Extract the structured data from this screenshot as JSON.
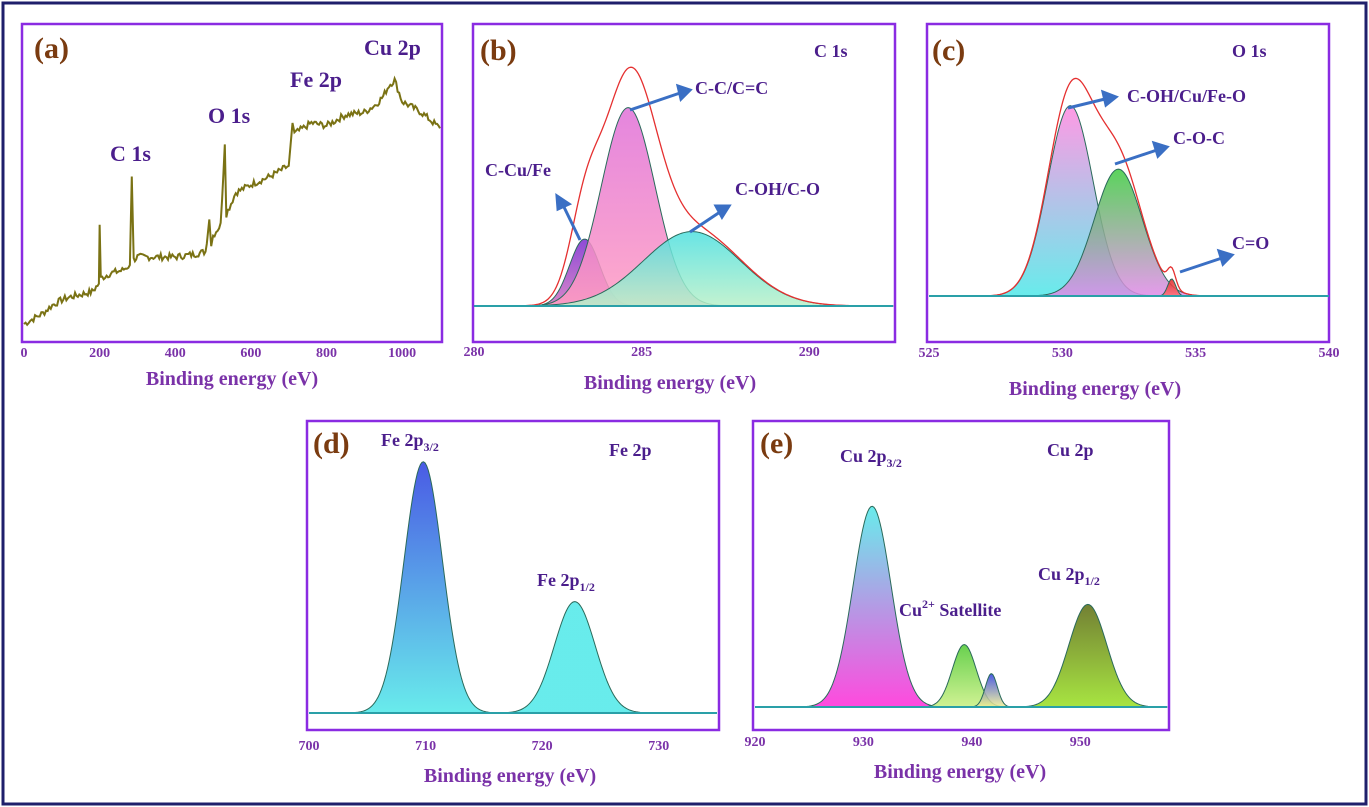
{
  "colors": {
    "frame": "#1f1f6b",
    "panel_border": "#8a2be2",
    "axis_text": "#7a32a8",
    "panel_letter": "#7a3b10",
    "label": "#4b1e8c",
    "arrow": "#3a6fc4",
    "envelope": "#e53030",
    "baseline": "#2aa0a8",
    "survey": "#7a7214"
  },
  "chart_data": [
    {
      "type": "line",
      "panel": "(a)",
      "xlabel": "Binding energy (eV)",
      "xlim": [
        0,
        1100
      ],
      "xticks": [
        0,
        200,
        400,
        600,
        800,
        1000
      ],
      "series_color": "#7a7214",
      "peak_labels": [
        {
          "text": "C 1s",
          "x": 285
        },
        {
          "text": "O 1s",
          "x": 531
        },
        {
          "text": "Fe 2p",
          "x": 710
        },
        {
          "text": "Cu 2p",
          "x": 932
        }
      ],
      "x": [
        0,
        25,
        50,
        75,
        100,
        120,
        150,
        180,
        198,
        200,
        203,
        230,
        260,
        280,
        285,
        290,
        300,
        350,
        400,
        450,
        480,
        490,
        495,
        500,
        520,
        531,
        535,
        560,
        600,
        650,
        700,
        705,
        710,
        715,
        760,
        800,
        850,
        900,
        932,
        950,
        965,
        980,
        1000,
        1050,
        1100
      ],
      "values": [
        0.03,
        0.05,
        0.07,
        0.1,
        0.12,
        0.13,
        0.14,
        0.15,
        0.18,
        0.4,
        0.2,
        0.22,
        0.23,
        0.25,
        0.58,
        0.27,
        0.28,
        0.28,
        0.28,
        0.29,
        0.3,
        0.42,
        0.32,
        0.36,
        0.4,
        0.7,
        0.44,
        0.52,
        0.55,
        0.58,
        0.62,
        0.7,
        0.78,
        0.74,
        0.78,
        0.77,
        0.81,
        0.82,
        0.85,
        0.88,
        0.92,
        0.94,
        0.86,
        0.82,
        0.76
      ]
    },
    {
      "type": "area",
      "panel": "(b)",
      "title": "C 1s",
      "xlabel": "Binding energy (eV)",
      "xlim": [
        280,
        292.5
      ],
      "xticks": [
        280,
        285,
        290
      ],
      "series": [
        {
          "name": "C-Cu/Fe",
          "center": 283.3,
          "height": 0.27,
          "width": 0.45,
          "colors": [
            "#7a2bd0",
            "#d070c0"
          ]
        },
        {
          "name": "C-C/C=C",
          "center": 284.6,
          "height": 0.8,
          "width": 0.8,
          "colors": [
            "#e070d8",
            "#ff9cc2"
          ]
        },
        {
          "name": "C-OH/C-O",
          "center": 286.5,
          "height": 0.3,
          "width": 1.45,
          "colors": [
            "#4ee0e0",
            "#b8f0c8"
          ]
        }
      ],
      "envelope_color": "#e53030"
    },
    {
      "type": "area",
      "panel": "(c)",
      "title": "O 1s",
      "xlabel": "Binding energy (eV)",
      "xlim": [
        525,
        540
      ],
      "xticks": [
        525,
        530,
        535,
        540
      ],
      "series": [
        {
          "name": "C-OH/Cu/Fe-O",
          "center": 530.3,
          "height": 0.78,
          "width": 0.85,
          "colors": [
            "#ff88e0",
            "#4ee8e8"
          ]
        },
        {
          "name": "C-O-C",
          "center": 532.1,
          "height": 0.52,
          "width": 0.9,
          "colors": [
            "#3ecc40",
            "#e08ae8"
          ]
        },
        {
          "name": "C=O",
          "center": 534.1,
          "height": 0.07,
          "width": 0.15,
          "colors": [
            "#e02020",
            "#ff7070"
          ]
        }
      ],
      "envelope_color": "#e53030"
    },
    {
      "type": "area",
      "panel": "(d)",
      "title": "Fe 2p",
      "xlabel": "Binding energy (eV)",
      "xlim": [
        700,
        735
      ],
      "xticks": [
        700,
        710,
        720,
        730
      ],
      "series": [
        {
          "name": "Fe 2p3/2",
          "center": 709.8,
          "height": 0.97,
          "width": 1.65,
          "colors": [
            "#2a3ee0",
            "#4ee8e8"
          ]
        },
        {
          "name": "Fe 2p1/2",
          "center": 722.8,
          "height": 0.43,
          "width": 1.75,
          "colors": [
            "#4ee8e8",
            "#4ee8e8"
          ]
        }
      ]
    },
    {
      "type": "area",
      "panel": "(e)",
      "title": "Cu 2p",
      "xlabel": "Binding energy (eV)",
      "xlim": [
        920,
        958
      ],
      "xticks": [
        920,
        930,
        940,
        950
      ],
      "series": [
        {
          "name": "Cu 2p3/2",
          "center": 930.8,
          "height": 0.9,
          "width": 1.75,
          "colors": [
            "#4ee8e8",
            "#ff2ad8"
          ]
        },
        {
          "name": "Cu2+ Satellite",
          "center": 939.3,
          "height": 0.28,
          "width": 1.1,
          "colors": [
            "#4ec830",
            "#c8f080"
          ]
        },
        {
          "name": "Cu2+ Satellite (minor)",
          "center": 941.8,
          "height": 0.15,
          "width": 0.55,
          "colors": [
            "#2a3ee0",
            "#f0f090"
          ]
        },
        {
          "name": "Cu 2p1/2",
          "center": 950.7,
          "height": 0.46,
          "width": 1.75,
          "colors": [
            "#5a6a10",
            "#98e020"
          ]
        }
      ]
    }
  ],
  "text": {
    "a_letter": "(a)",
    "b_letter": "(b)",
    "c_letter": "(c)",
    "d_letter": "(d)",
    "e_letter": "(e)",
    "xlabel": "Binding energy (eV)",
    "b_title": "C 1s",
    "c_title": "O 1s",
    "d_title": "Fe 2p",
    "e_title": "Cu 2p",
    "b_labels": [
      "C-Cu/Fe",
      "C-C/C=C",
      "C-OH/C-O"
    ],
    "c_labels": [
      "C-OH/Cu/Fe-O",
      "C-O-C",
      "C=O"
    ],
    "d_label1_main": "Fe 2p",
    "d_label1_sub": "3/2",
    "d_label2_main": "Fe 2p",
    "d_label2_sub": "1/2",
    "e_label1_main": "Cu 2p",
    "e_label1_sub": "3/2",
    "e_label2_main": "Cu",
    "e_label2_sup": "2+",
    "e_label2_rest": " Satellite",
    "e_label3_main": "Cu 2p",
    "e_label3_sub": "1/2"
  }
}
